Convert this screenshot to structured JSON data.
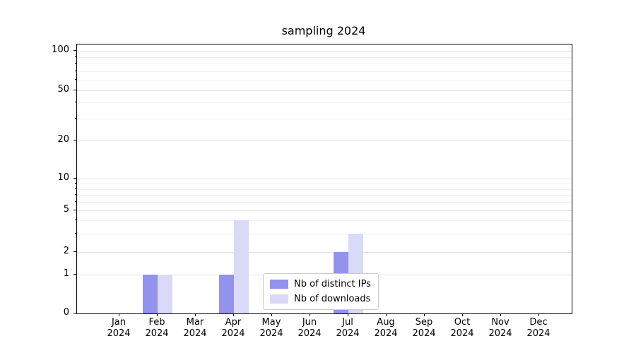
{
  "chart_data": {
    "type": "bar",
    "title": "sampling 2024",
    "year_label": "2024",
    "categories": [
      "Jan",
      "Feb",
      "Mar",
      "Apr",
      "May",
      "Jun",
      "Jul",
      "Aug",
      "Sep",
      "Oct",
      "Nov",
      "Dec"
    ],
    "series": [
      {
        "name": "Nb of distinct IPs",
        "color": "#9393ec",
        "values": [
          0,
          1,
          0,
          1,
          0,
          0,
          2,
          0,
          0,
          0,
          0,
          0
        ]
      },
      {
        "name": "Nb of downloads",
        "color": "#d9d9f8",
        "values": [
          0,
          1,
          0,
          4,
          0,
          0,
          3,
          0,
          0,
          0,
          0,
          0
        ]
      }
    ],
    "y_ticks": [
      0,
      1,
      2,
      5,
      10,
      20,
      50,
      100
    ],
    "y_minor_gridlines": [
      3,
      4,
      6,
      7,
      8,
      9,
      30,
      40,
      60,
      70,
      80,
      90
    ],
    "y_scale": "symlog",
    "grid": "horizontal",
    "legend_position": "bottom-center-inside",
    "xlabel": "",
    "ylabel": ""
  }
}
